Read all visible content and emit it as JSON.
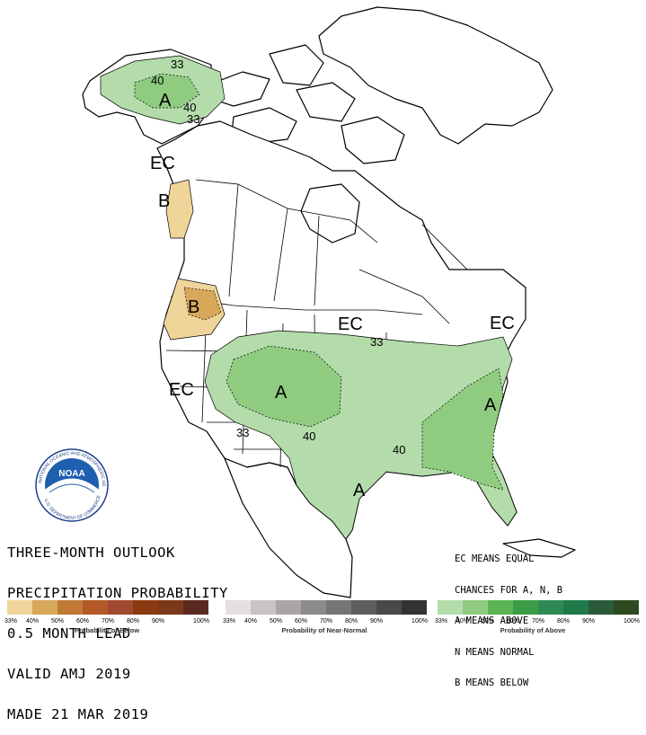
{
  "title_lines": [
    "THREE-MONTH OUTLOOK",
    "PRECIPITATION PROBABILITY",
    "0.5 MONTH LEAD",
    "VALID AMJ 2019",
    "MADE 21 MAR 2019"
  ],
  "key_lines": [
    "EC MEANS EQUAL",
    "CHANCES FOR A, N, B",
    "A MEANS ABOVE",
    "N MEANS NORMAL",
    "B MEANS BELOW"
  ],
  "map_labels": {
    "alaska_a": "A",
    "alaska_40": "40",
    "alaska_33_top": "33",
    "alaska_40_low": "40",
    "alaska_33_low": "33",
    "ec_panhandle": "EC",
    "b_bc": "B",
    "b_oregon": "B",
    "ec_north": "EC",
    "ec_northeast": "EC",
    "ec_west": "EC",
    "a_rockies": "A",
    "a_southeast": "A",
    "a_gulf": "A",
    "c33_midwest": "33",
    "c33_southwest": "33",
    "c40_plains": "40",
    "c40_south": "40"
  },
  "logo": {
    "text": "NOAA",
    "ring_text": "NATIONAL OCEANIC AND ATMOSPHERIC ADMINISTRATION",
    "ring_text_bottom": "U.S. DEPARTMENT OF COMMERCE"
  },
  "legend": {
    "below": {
      "caption": "Probability of Below",
      "colors": [
        "#f0d59a",
        "#d8a85a",
        "#c07a36",
        "#b45a28",
        "#a04a30",
        "#8a3a10",
        "#7a3a1a",
        "#5a2a20"
      ],
      "ticks": [
        "33%",
        "40%",
        "50%",
        "60%",
        "70%",
        "80%",
        "90%",
        "100%"
      ]
    },
    "normal": {
      "caption": "Probability of Near-Normal",
      "colors": [
        "#e6dfe2",
        "#c9c3c5",
        "#a9a5a6",
        "#8d8a8b",
        "#777475",
        "#5f5d5e",
        "#4a4849",
        "#333132"
      ],
      "ticks": [
        "33%",
        "40%",
        "50%",
        "60%",
        "70%",
        "80%",
        "90%",
        "100%"
      ]
    },
    "above": {
      "caption": "Probability of Above",
      "colors": [
        "#b3dcaa",
        "#8fcc80",
        "#5ab552",
        "#3c9b45",
        "#2e8a55",
        "#1f7a4a",
        "#2a5a3a",
        "#2d4a1e"
      ],
      "ticks": [
        "33%",
        "40%",
        "50%",
        "60%",
        "70%",
        "80%",
        "90%",
        "100%"
      ]
    }
  }
}
